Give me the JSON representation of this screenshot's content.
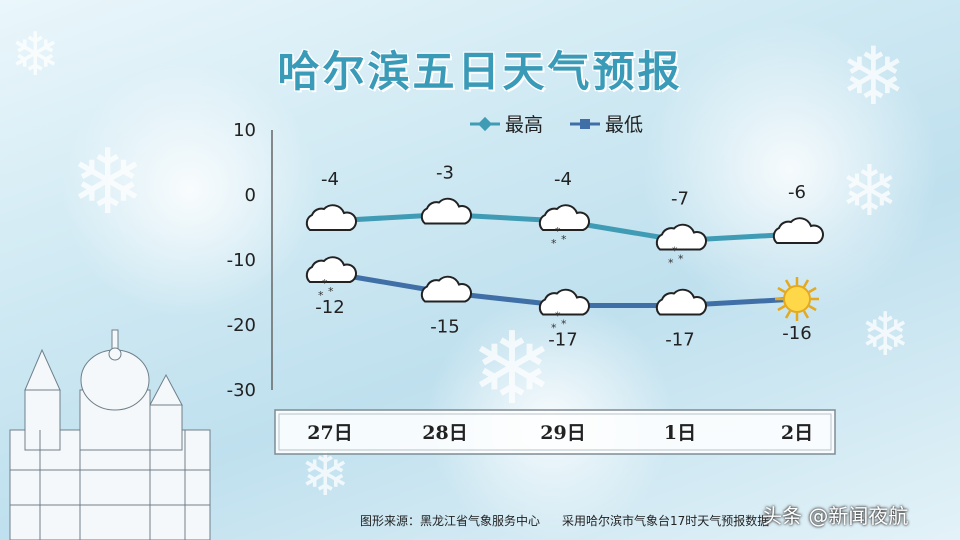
{
  "title": "哈尔滨五日天气预报",
  "legend": {
    "high_label": "最高",
    "low_label": "最低"
  },
  "colors": {
    "high": "#3f9cb4",
    "low": "#3f6fa6",
    "title": "#3a9bb8"
  },
  "icons": {
    "high": [
      "cloud-icon",
      "cloud-icon",
      "snow-cloud-icon",
      "snow-cloud-icon",
      "cloud-icon"
    ],
    "low": [
      "snow-cloud-icon",
      "cloud-icon",
      "snow-cloud-icon",
      "cloud-icon",
      "sun-icon"
    ]
  },
  "chart_data": {
    "type": "line",
    "title": "哈尔滨五日天气预报",
    "categories": [
      "27日",
      "28日",
      "29日",
      "1日",
      "2日"
    ],
    "series": [
      {
        "name": "最高",
        "values": [
          -4,
          -3,
          -4,
          -7,
          -6
        ]
      },
      {
        "name": "最低",
        "values": [
          -12,
          -15,
          -17,
          -17,
          -16
        ]
      }
    ],
    "ylim": [
      -30,
      10
    ],
    "yticks": [
      10,
      0,
      -10,
      -20,
      -30
    ],
    "legend_position": "top-center",
    "grid": false
  },
  "footer": {
    "source": "图形来源：黑龙江省气象服务中心",
    "note": "采用哈尔滨市气象台17时天气预报数据"
  },
  "watermark": "头条 @新闻夜航"
}
